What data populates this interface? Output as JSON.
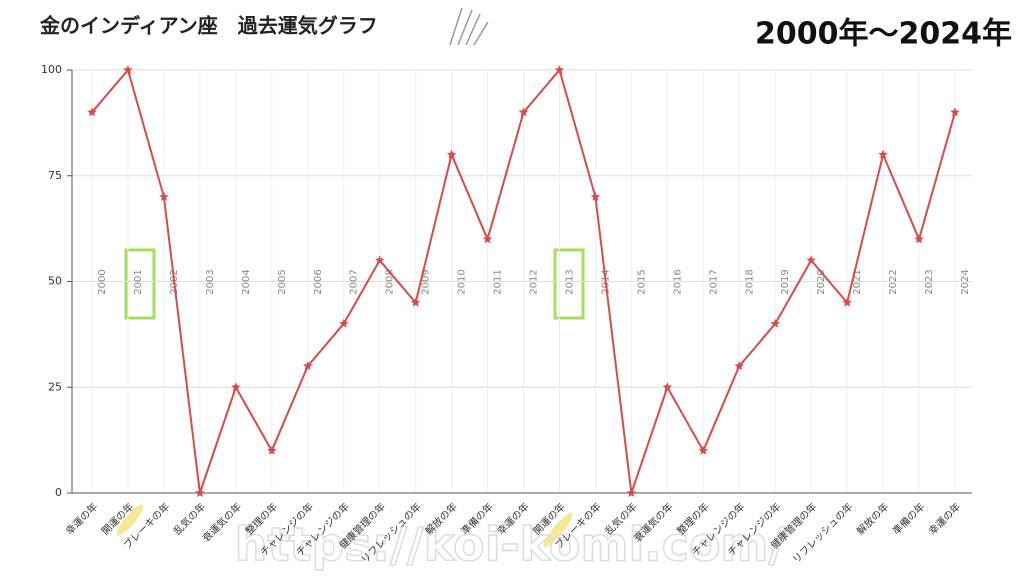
{
  "chart_data": {
    "type": "line",
    "title": "金のインディアン座　過去運気グラフ",
    "subtitle": "2000年〜2024年",
    "watermark": "https://koi-komi.com/",
    "year_labels": [
      "2000",
      "2001",
      "2002",
      "2003",
      "2004",
      "2005",
      "2006",
      "2007",
      "2008",
      "2009",
      "2010",
      "2011",
      "2012",
      "2013",
      "2014",
      "2015",
      "2016",
      "2017",
      "2018",
      "2019",
      "2020",
      "2021",
      "2022",
      "2023",
      "2024"
    ],
    "categories": [
      "幸運の年",
      "開運の年",
      "ブレーキの年",
      "乱気の年",
      "衰運気の年",
      "整理の年",
      "チャレンジの年",
      "チャレンジの年",
      "健康管理の年",
      "リフレッシュの年",
      "解放の年",
      "準備の年",
      "幸運の年",
      "開運の年",
      "ブレーキの年",
      "乱気の年",
      "衰運気の年",
      "整理の年",
      "チャレンジの年",
      "チャレンジの年",
      "健康管理の年",
      "リフレッシュの年",
      "解放の年",
      "準備の年",
      "幸運の年"
    ],
    "values": [
      90,
      100,
      70,
      0,
      25,
      10,
      30,
      40,
      55,
      45,
      80,
      60,
      90,
      100,
      70,
      0,
      25,
      10,
      30,
      40,
      55,
      45,
      80,
      60,
      90
    ],
    "color": "#d94a4a",
    "ylim": [
      0,
      100
    ],
    "yticks": [
      0,
      25,
      50,
      75,
      100
    ],
    "grid": true
  }
}
